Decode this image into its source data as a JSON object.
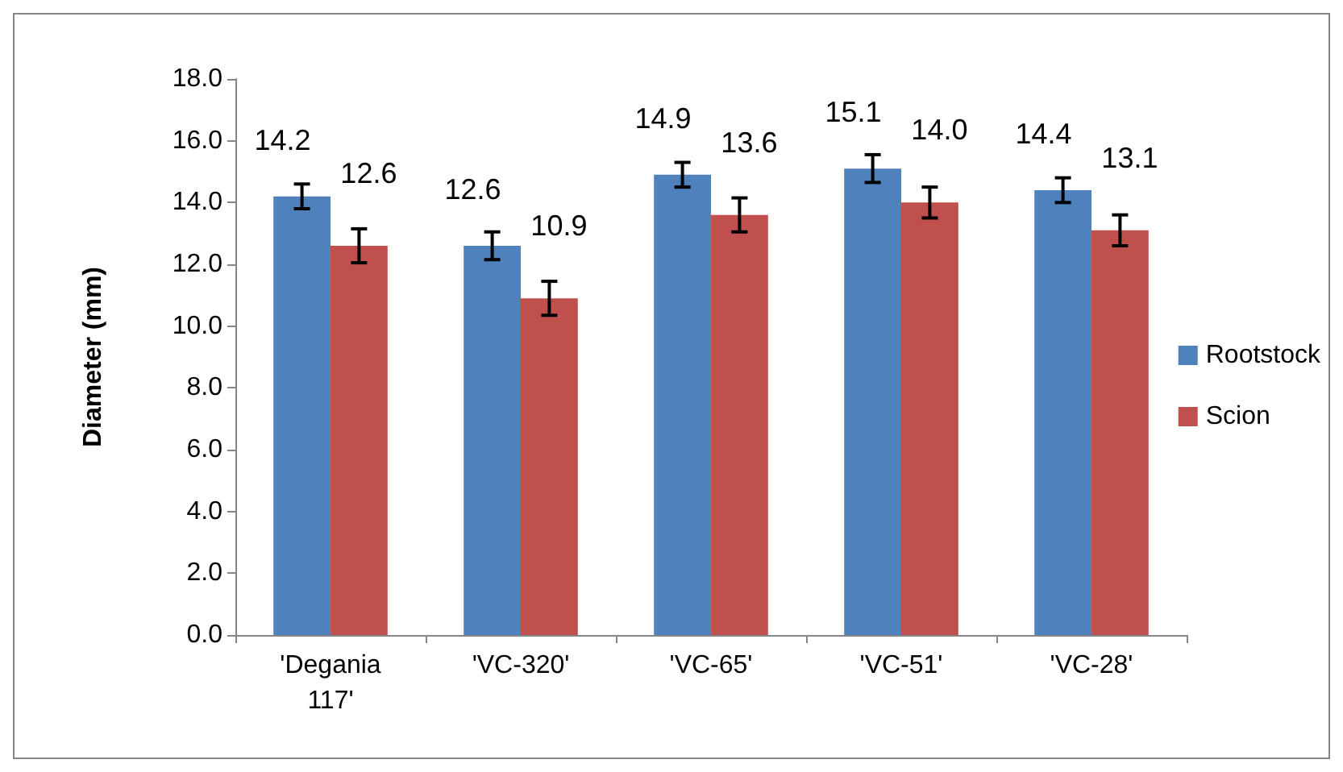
{
  "chart_data": {
    "type": "bar",
    "ylabel": "Diameter (mm)",
    "categories": [
      "'Degania\n117'",
      "'VC-320'",
      "'VC-65'",
      "'VC-51'",
      "'VC-28'"
    ],
    "series": [
      {
        "name": "Rootstock",
        "color": "#4f81bd",
        "values": [
          14.2,
          12.6,
          14.9,
          15.1,
          14.4
        ],
        "value_labels": [
          "14.2",
          "12.6",
          "14.9",
          "15.1",
          "14.4"
        ],
        "errors": [
          0.4,
          0.45,
          0.4,
          0.45,
          0.4
        ]
      },
      {
        "name": "Scion",
        "color": "#c0504d",
        "values": [
          12.6,
          10.9,
          13.6,
          14.0,
          13.1
        ],
        "value_labels": [
          "12.6",
          "10.9",
          "13.6",
          "14.0",
          "13.1"
        ],
        "errors": [
          0.55,
          0.55,
          0.55,
          0.5,
          0.5
        ]
      }
    ],
    "ylim": [
      0,
      18
    ],
    "yticks": [
      {
        "value": 0,
        "label": "0.0"
      },
      {
        "value": 2,
        "label": "2.0"
      },
      {
        "value": 4,
        "label": "4.0"
      },
      {
        "value": 6,
        "label": "6.0"
      },
      {
        "value": 8,
        "label": "8.0"
      },
      {
        "value": 10,
        "label": "10.0"
      },
      {
        "value": 12,
        "label": "12.0"
      },
      {
        "value": 14,
        "label": "14.0"
      },
      {
        "value": 16,
        "label": "16.0"
      },
      {
        "value": 18,
        "label": "18.0"
      }
    ],
    "grid": false,
    "legend": "right"
  }
}
